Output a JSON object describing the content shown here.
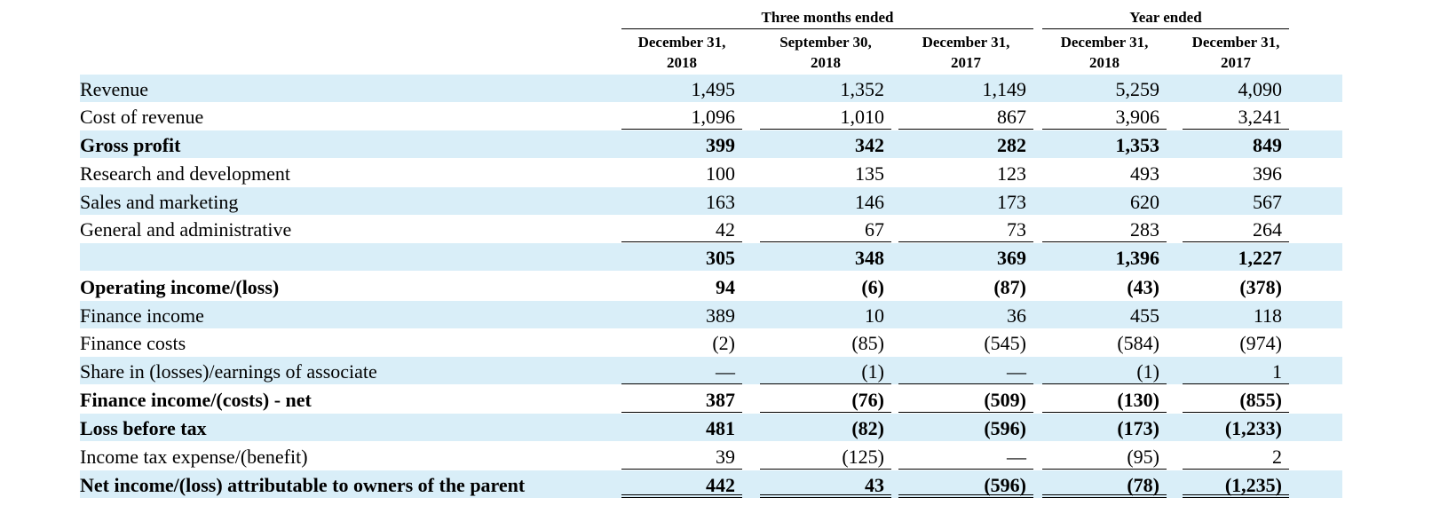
{
  "header": {
    "group1": "Three months ended",
    "group2": "Year ended",
    "columns": [
      {
        "line1": "December 31,",
        "line2": "2018"
      },
      {
        "line1": "September 30,",
        "line2": "2018"
      },
      {
        "line1": "December 31,",
        "line2": "2017"
      },
      {
        "line1": "December 31,",
        "line2": "2018"
      },
      {
        "line1": "December 31,",
        "line2": "2017"
      }
    ]
  },
  "rows": [
    {
      "label": "Revenue",
      "values": [
        "1,495",
        "1,352",
        "1,149",
        "5,259",
        "4,090"
      ]
    },
    {
      "label": "Cost of revenue",
      "values": [
        "1,096",
        "1,010",
        "867",
        "3,906",
        "3,241"
      ]
    },
    {
      "label": "Gross profit",
      "values": [
        "399",
        "342",
        "282",
        "1,353",
        "849"
      ]
    },
    {
      "label": "Research and development",
      "values": [
        "100",
        "135",
        "123",
        "493",
        "396"
      ]
    },
    {
      "label": "Sales and marketing",
      "values": [
        "163",
        "146",
        "173",
        "620",
        "567"
      ]
    },
    {
      "label": "General and administrative",
      "values": [
        "42",
        "67",
        "73",
        "283",
        "264"
      ]
    },
    {
      "label": "",
      "values": [
        "305",
        "348",
        "369",
        "1,396",
        "1,227"
      ]
    },
    {
      "label": "Operating income/(loss)",
      "values": [
        "94",
        "(6)",
        "(87)",
        "(43)",
        "(378)"
      ]
    },
    {
      "label": "Finance income",
      "values": [
        "389",
        "10",
        "36",
        "455",
        "118"
      ]
    },
    {
      "label": "Finance costs",
      "values": [
        "(2)",
        "(85)",
        "(545)",
        "(584)",
        "(974)"
      ]
    },
    {
      "label": "Share in (losses)/earnings of associate",
      "values": [
        "—",
        "(1)",
        "—",
        "(1)",
        "1"
      ]
    },
    {
      "label": "Finance income/(costs) - net",
      "values": [
        "387",
        "(76)",
        "(509)",
        "(130)",
        "(855)"
      ]
    },
    {
      "label": "Loss before tax",
      "values": [
        "481",
        "(82)",
        "(596)",
        "(173)",
        "(1,233)"
      ]
    },
    {
      "label": "Income tax expense/(benefit)",
      "values": [
        "39",
        "(125)",
        "—",
        "(95)",
        "2"
      ]
    },
    {
      "label": "Net income/(loss) attributable to owners of the parent",
      "values": [
        "442",
        "43",
        "(596)",
        "(78)",
        "(1,235)"
      ]
    }
  ]
}
